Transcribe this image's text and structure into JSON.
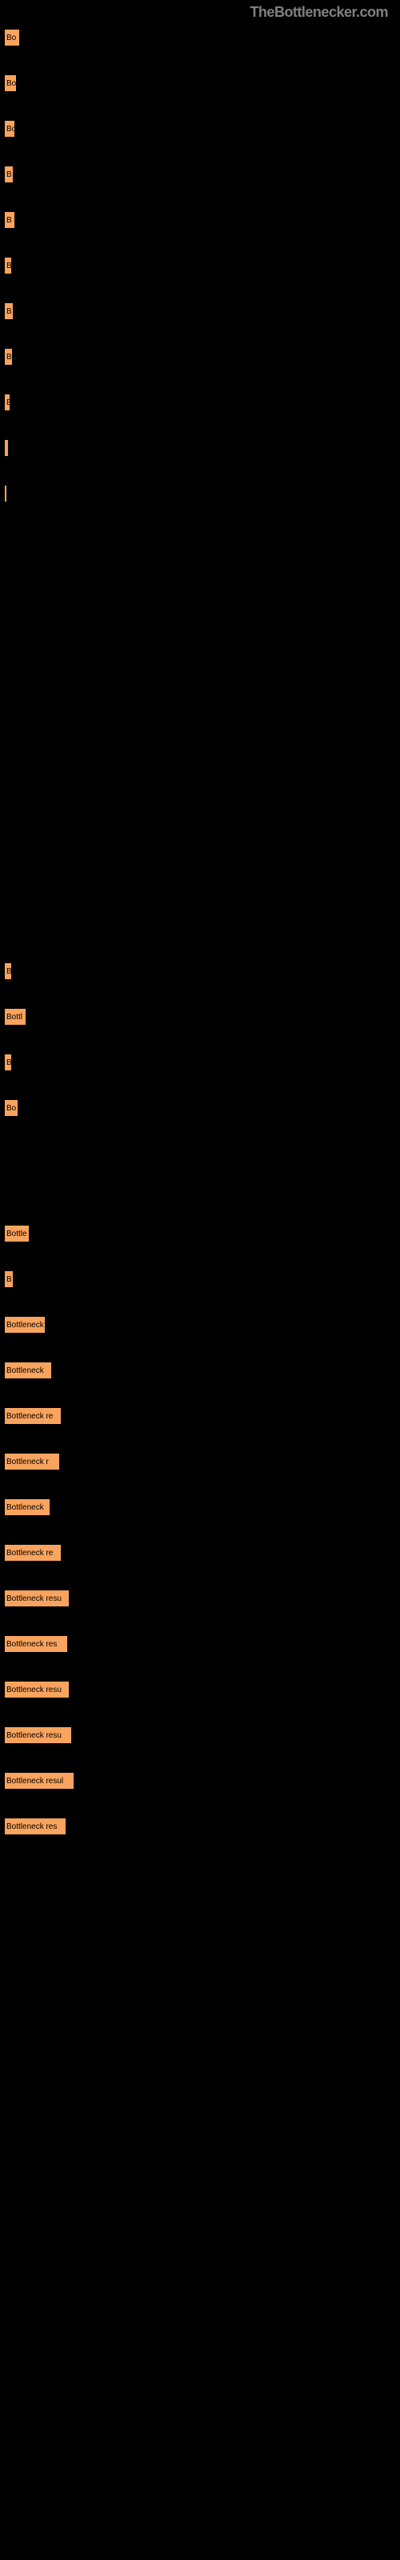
{
  "watermark": "TheBottlenecker.com",
  "section1": [
    {
      "width": 20,
      "label": "Bo"
    },
    {
      "width": 16,
      "label": "Bo"
    },
    {
      "width": 14,
      "label": "Bo"
    },
    {
      "width": 12,
      "label": "B"
    },
    {
      "width": 14,
      "label": "B"
    },
    {
      "width": 10,
      "label": "B"
    },
    {
      "width": 12,
      "label": "B"
    },
    {
      "width": 11,
      "label": "B"
    },
    {
      "width": 8,
      "label": "B"
    },
    {
      "width": 6,
      "label": ""
    },
    {
      "width": 2,
      "label": ""
    }
  ],
  "section2": [
    {
      "width": 10,
      "label": "B"
    },
    {
      "width": 28,
      "label": "Bottl"
    },
    {
      "width": 10,
      "label": "B"
    },
    {
      "width": 18,
      "label": "Bo"
    }
  ],
  "section3": [
    {
      "width": 32,
      "label": "Bottle"
    },
    {
      "width": 12,
      "label": "B"
    },
    {
      "width": 52,
      "label": "Bottleneck"
    },
    {
      "width": 60,
      "label": "Bottleneck"
    },
    {
      "width": 72,
      "label": "Bottleneck re"
    },
    {
      "width": 70,
      "label": "Bottleneck r"
    },
    {
      "width": 58,
      "label": "Bottleneck"
    },
    {
      "width": 72,
      "label": "Bottleneck re"
    },
    {
      "width": 82,
      "label": "Bottleneck resu"
    },
    {
      "width": 80,
      "label": "Bottleneck res"
    },
    {
      "width": 82,
      "label": "Bottleneck resu"
    },
    {
      "width": 85,
      "label": "Bottleneck resu"
    },
    {
      "width": 88,
      "label": "Bottleneck resul"
    },
    {
      "width": 78,
      "label": "Bottleneck res"
    }
  ],
  "colors": {
    "bar": "#f9a45e",
    "background": "#000000",
    "watermark": "#808080"
  }
}
